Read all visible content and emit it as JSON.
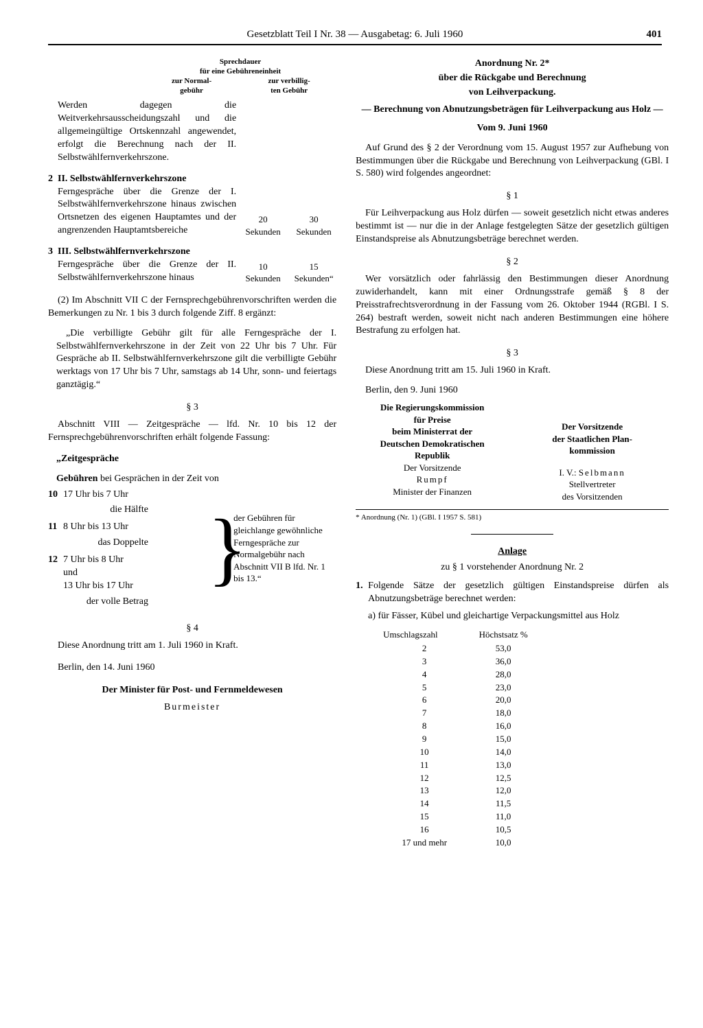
{
  "header": {
    "title": "Gesetzblatt Teil I Nr. 38 — Ausgabetag: 6. Juli 1960",
    "page_number": "401"
  },
  "left": {
    "sprech_head_l1": "Sprechdauer",
    "sprech_head_l2": "für eine Gebühreneinheit",
    "sprech_head_l3a": "zur Normal-",
    "sprech_head_l3b": "zur verbillig-",
    "sprech_head_l4a": "gebühr",
    "sprech_head_l4b": "ten Gebühr",
    "intro1": "Werden dagegen die Weitverkehrsausscheidungszahl und die allgemeingültige Ortskennzahl angewendet, erfolgt die Berechnung nach der II. Selbstwählfernverkehrszone.",
    "zone2_num": "2",
    "zone2_title": "II. Selbstwählfernverkehrszone",
    "zone2_text": "Ferngespräche über die Grenze der I. Selbstwählfernverkehrszone hinaus zwischen Ortsnetzen des eigenen Hauptamtes und der angrenzenden Hauptamtsbereiche",
    "zone2_v1": "20",
    "zone2_v2": "30",
    "zone2_u": "Sekunden",
    "zone3_num": "3",
    "zone3_title": "III. Selbstwählfernverkehrszone",
    "zone3_text": "Ferngespräche über die Grenze der II. Selbstwählfernverkehrszone hinaus",
    "zone3_v1": "10",
    "zone3_v2": "15",
    "zone3_u": "Sekunden",
    "zone3_u2": "Sekunden“",
    "para2_intro": "(2) Im Abschnitt VII C der Fernsprechgebührenvorschriften werden die Bemerkungen zu Nr. 1 bis 3 durch folgende Ziff. 8 ergänzt:",
    "para2_quote": "„Die verbilligte Gebühr gilt für alle Ferngespräche der I. Selbstwählfernverkehrszone in der Zeit von 22 Uhr bis 7 Uhr. Für Gespräche ab II. Selbstwählfernverkehrszone gilt die verbilligte Gebühr werktags von 17 Uhr bis 7 Uhr, samstags ab 14 Uhr, sonn- und feiertags ganztägig.“",
    "s3": "§ 3",
    "s3_text": "Abschnitt VIII — Zeitgespräche — lfd. Nr. 10 bis 12 der Fernsprechgebührenvorschriften erhält folgende Fassung:",
    "zeit_title": "„Zeitgespräche",
    "zeit_sub": "Gebühren bei Gesprächen in der Zeit von",
    "zeit_sub_bold": "Gebühren",
    "z10_n": "10",
    "z10_t": "17 Uhr bis 7 Uhr",
    "z10_f": "die Hälfte",
    "z11_n": "11",
    "z11_t": "8 Uhr bis 13 Uhr",
    "z11_f": "das Doppelte",
    "z12_n": "12",
    "z12_t1": "7 Uhr bis 8 Uhr",
    "z12_t2": "und",
    "z12_t3": "13 Uhr bis 17 Uhr",
    "z12_f": "der volle Betrag",
    "brace_text": "der Gebühren für gleichlange gewöhnliche Ferngespräche zur Normalgebühr nach Abschnitt VII B lfd. Nr. 1 bis 13.“",
    "s4": "§ 4",
    "s4_text": "Diese Anordnung tritt am 1. Juli 1960 in Kraft.",
    "berlin": "Berlin, den 14. Juni 1960",
    "minister": "Der Minister für Post- und Fernmeldewesen",
    "minister_name": "Burmeister"
  },
  "right": {
    "t1": "Anordnung Nr. 2*",
    "t2": "über die Rückgabe und Berechnung",
    "t3": "von Leihverpackung.",
    "sub": "— Berechnung von Abnutzungsbeträgen für Leihverpackung aus Holz —",
    "date": "Vom 9. Juni 1960",
    "intro": "Auf Grund des § 2 der Verordnung vom 15. August 1957 zur Aufhebung von Bestimmungen über die Rückgabe und Berechnung von Leihverpackung (GBl. I S. 580) wird folgendes angeordnet:",
    "s1": "§ 1",
    "s1_text": "Für Leihverpackung aus Holz dürfen — soweit gesetzlich nicht etwas anderes bestimmt ist — nur die in der Anlage festgelegten Sätze der gesetzlich gültigen Einstandspreise als Abnutzungsbeträge berechnet werden.",
    "s2": "§ 2",
    "s2_text": "Wer vorsätzlich oder fahrlässig den Bestimmungen dieser Anordnung zuwiderhandelt, kann mit einer Ordnungsstrafe gemäß § 8 der Preisstrafrechtsverordnung in der Fassung vom 26. Oktober 1944 (RGBl. I S. 264) bestraft werden, soweit nicht nach anderen Bestimmungen eine höhere Bestrafung zu erfolgen hat.",
    "s3": "§ 3",
    "s3_text": "Diese Anordnung tritt am 15. Juli 1960 in Kraft.",
    "berlin": "Berlin, den 9. Juni 1960",
    "sig1_l1": "Die Regierungskommission",
    "sig1_l2": "für Preise",
    "sig1_l3": "beim Ministerrat der",
    "sig1_l4": "Deutschen Demokratischen",
    "sig1_l5": "Republik",
    "sig1_l6": "Der Vorsitzende",
    "sig1_l7": "Rumpf",
    "sig1_l8": "Minister der Finanzen",
    "sig2_l1": "Der Vorsitzende",
    "sig2_l2": "der Staatlichen Plan-",
    "sig2_l3": "kommission",
    "sig2_l4": "I. V.:",
    "sig2_l4b": "Selbmann",
    "sig2_l5": "Stellvertreter",
    "sig2_l6": "des Vorsitzenden",
    "footnote": "* Anordnung (Nr. 1) (GBl. I 1957 S. 581)",
    "anlage": "Anlage",
    "anlage_sub": "zu § 1 vorstehender Anordnung Nr. 2",
    "item1_n": "1.",
    "item1_text": "Folgende Sätze der gesetzlich gültigen Einstandspreise dürfen als Abnutzungsbeträge berechnet werden:",
    "item1a": "a) für Fässer, Kübel und gleichartige Verpackungsmittel aus Holz",
    "th1": "Umschlagszahl",
    "th2": "Höchstsatz %",
    "rows": [
      [
        "2",
        "53,0"
      ],
      [
        "3",
        "36,0"
      ],
      [
        "4",
        "28,0"
      ],
      [
        "5",
        "23,0"
      ],
      [
        "6",
        "20,0"
      ],
      [
        "7",
        "18,0"
      ],
      [
        "8",
        "16,0"
      ],
      [
        "9",
        "15,0"
      ],
      [
        "10",
        "14,0"
      ],
      [
        "11",
        "13,0"
      ],
      [
        "12",
        "12,5"
      ],
      [
        "13",
        "12,0"
      ],
      [
        "14",
        "11,5"
      ],
      [
        "15",
        "11,0"
      ],
      [
        "16",
        "10,5"
      ],
      [
        "17 und mehr",
        "10,0"
      ]
    ]
  }
}
